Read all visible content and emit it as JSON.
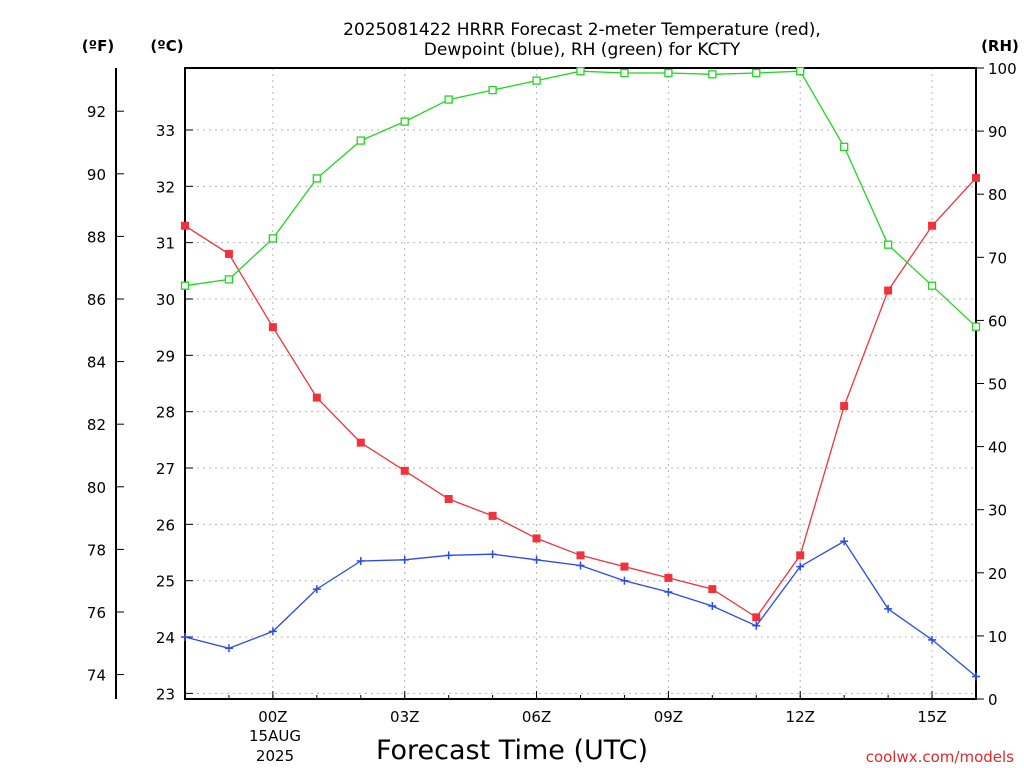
{
  "chart_data": {
    "type": "line",
    "title_lines": [
      "2025081422 HRRR Forecast 2-meter Temperature (red),",
      "Dewpoint (blue), RH (green) for KCTY"
    ],
    "xlabel": "Forecast Time (UTC)",
    "credit": "coolwx.com/models",
    "axis_units": {
      "left_outer": "(ºF)",
      "left_inner": "(ºC)",
      "right": "(RH)"
    },
    "date_label": [
      "15AUG",
      "2025"
    ],
    "x_hours": [
      -2,
      -1,
      0,
      1,
      2,
      3,
      4,
      5,
      6,
      7,
      8,
      9,
      10,
      11,
      12,
      13,
      14,
      15,
      16
    ],
    "x_ticks": [
      {
        "hour": 0,
        "label": "00Z"
      },
      {
        "hour": 3,
        "label": "03Z"
      },
      {
        "hour": 6,
        "label": "06Z"
      },
      {
        "hour": 9,
        "label": "09Z"
      },
      {
        "hour": 12,
        "label": "12Z"
      },
      {
        "hour": 15,
        "label": "15Z"
      }
    ],
    "xlim": [
      -2,
      16
    ],
    "celsius_lim": [
      22.9,
      34.1
    ],
    "celsius_ticks": [
      23,
      24,
      25,
      26,
      27,
      28,
      29,
      30,
      31,
      32,
      33
    ],
    "fahrenheit_ticks": [
      74,
      76,
      78,
      80,
      82,
      84,
      86,
      88,
      90,
      92
    ],
    "rh_lim": [
      0,
      100
    ],
    "rh_ticks": [
      0,
      10,
      20,
      30,
      40,
      50,
      60,
      70,
      80,
      90,
      100
    ],
    "grid": true,
    "series": [
      {
        "name": "Temperature",
        "axis": "celsius",
        "color": "#f0333b",
        "marker": "filled-square",
        "values": [
          31.3,
          30.8,
          29.5,
          28.25,
          27.45,
          26.95,
          26.45,
          26.15,
          25.75,
          25.45,
          25.25,
          25.05,
          24.85,
          24.35,
          25.45,
          28.1,
          30.15,
          31.3,
          32.15
        ]
      },
      {
        "name": "Dewpoint",
        "axis": "celsius",
        "color": "#2b4be6",
        "marker": "plus",
        "values": [
          24.0,
          23.8,
          24.1,
          24.85,
          25.35,
          25.37,
          25.45,
          25.47,
          25.37,
          25.27,
          25.0,
          24.8,
          24.55,
          24.2,
          25.25,
          25.7,
          24.5,
          23.95,
          23.3
        ]
      },
      {
        "name": "RH",
        "axis": "rh",
        "color": "#22d522",
        "marker": "open-square",
        "values": [
          65.5,
          66.5,
          73.0,
          82.5,
          88.5,
          91.5,
          95.0,
          96.5,
          98.0,
          99.5,
          99.2,
          99.2,
          99.0,
          99.2,
          99.5,
          87.5,
          72.0,
          65.5,
          59.0
        ]
      }
    ]
  }
}
